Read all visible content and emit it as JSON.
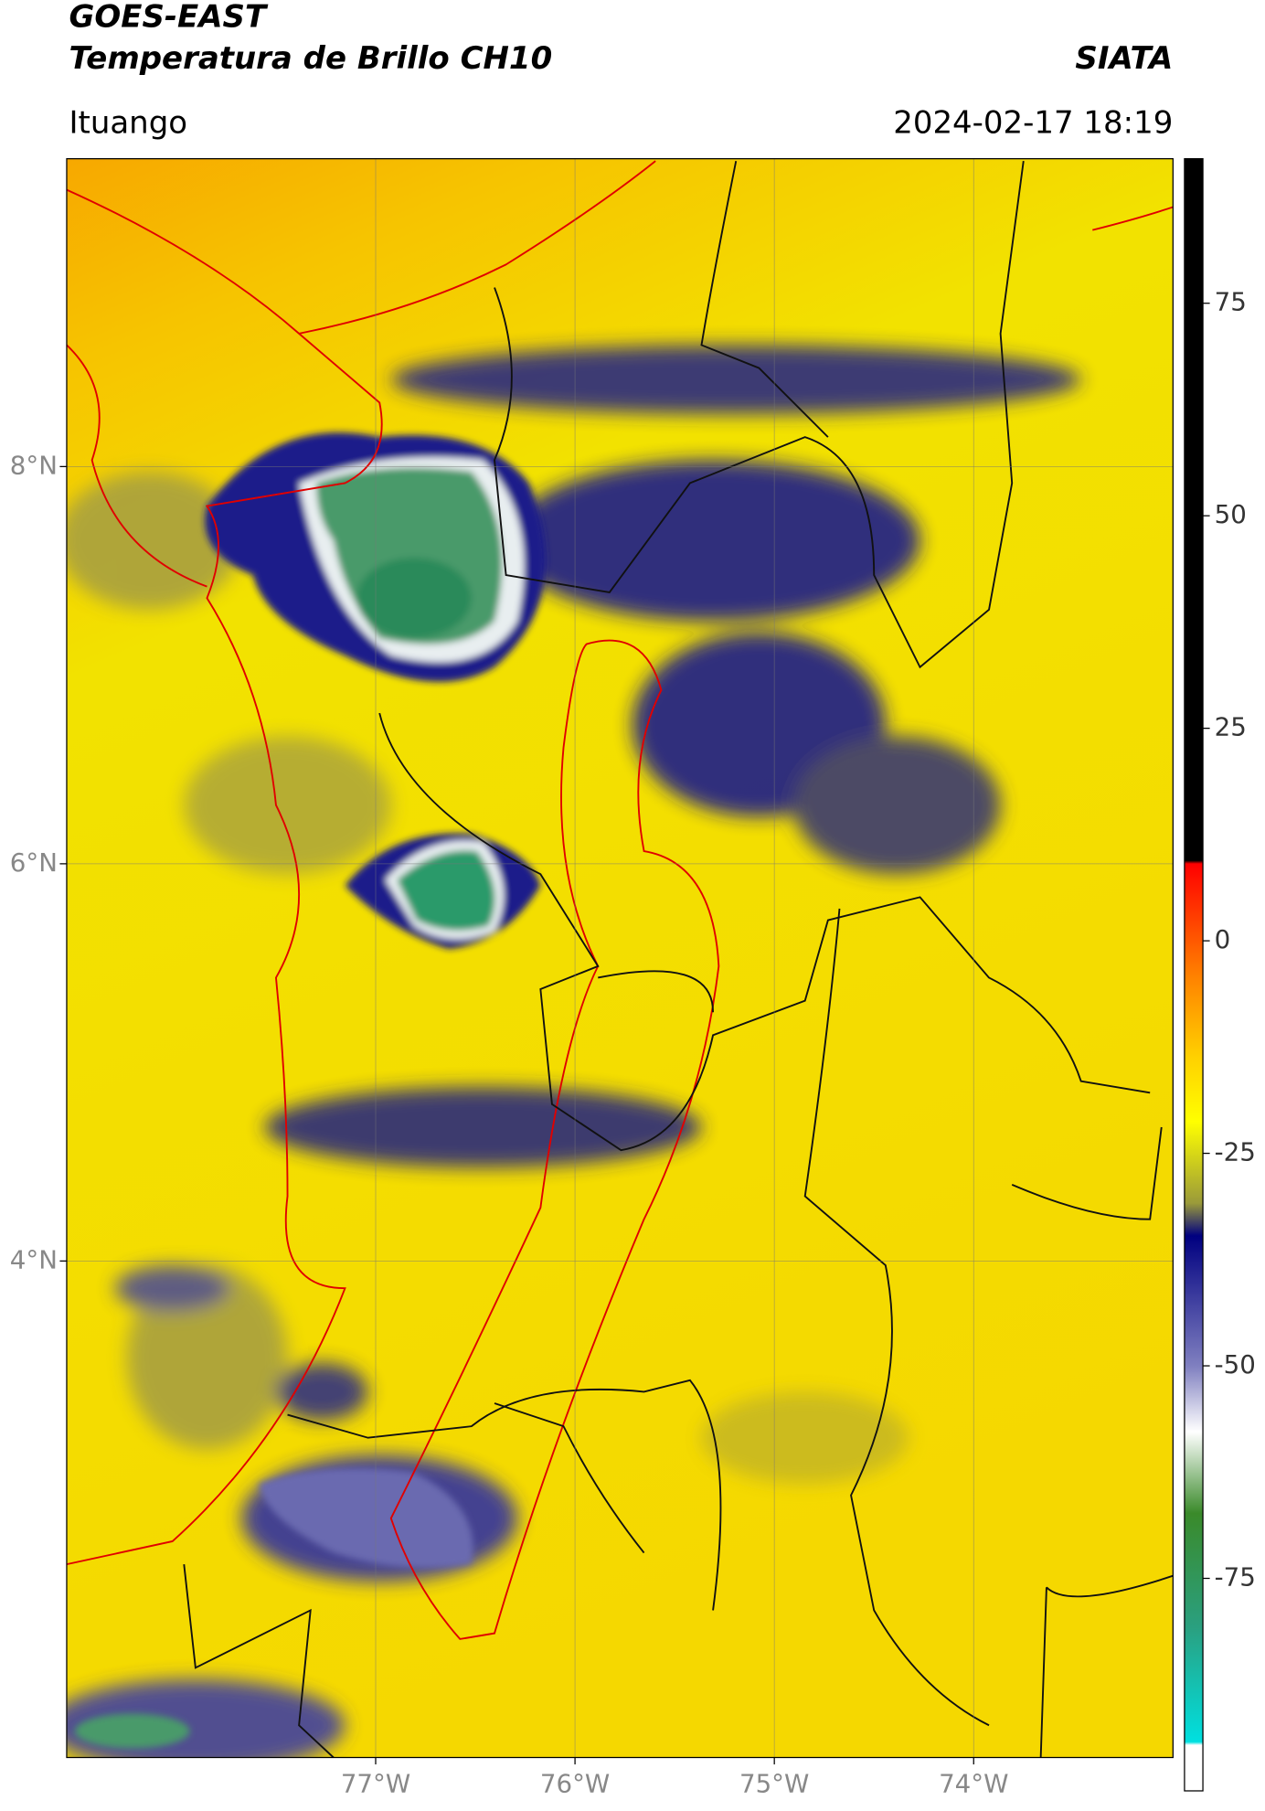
{
  "header": {
    "title": "GOES-EAST",
    "subtitle": "Temperatura de Brillo CH10",
    "source": "SIATA",
    "location": "Ituango",
    "datetime": "2024-02-17 18:19"
  },
  "map": {
    "xlim": [
      -78.55,
      -73.0
    ],
    "ylim": [
      1.5,
      9.55
    ],
    "xticks": [
      {
        "value": -77,
        "label": "77°W"
      },
      {
        "value": -76,
        "label": "76°W"
      },
      {
        "value": -75,
        "label": "75°W"
      },
      {
        "value": -74,
        "label": "74°W"
      }
    ],
    "yticks": [
      {
        "value": 8,
        "label": "8°N"
      },
      {
        "value": 6,
        "label": "6°N"
      },
      {
        "value": 4,
        "label": "4°N"
      }
    ],
    "grid": true
  },
  "colorbar": {
    "lim": [
      -100,
      92
    ],
    "ticks": [
      75,
      50,
      25,
      0,
      -25,
      -50,
      -75
    ]
  }
}
